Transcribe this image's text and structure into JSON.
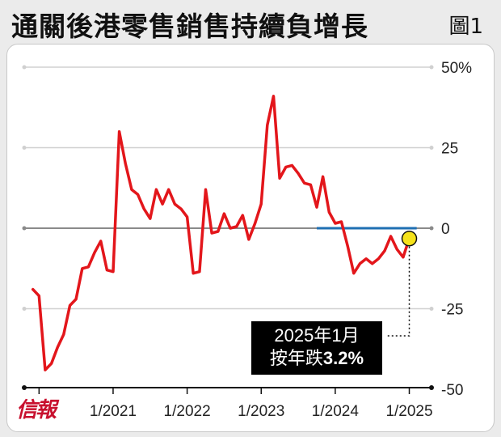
{
  "header": {
    "title": "通關後港零售銷售持續負增長",
    "figure_label": "圖1"
  },
  "logo": {
    "text": "信報"
  },
  "callout": {
    "line1": "2025年1月",
    "line2_prefix": "按年跌",
    "line2_value": "3.2%"
  },
  "colors": {
    "series": "#e3161b",
    "zero_highlight": "#1f6fb2",
    "marker_fill": "#f5e21a",
    "grid": "#d0d0d0"
  },
  "chart_data": {
    "type": "line",
    "title": "通關後港零售銷售持續負增長",
    "xlabel": "",
    "ylabel": "",
    "ylim": [
      -50,
      50
    ],
    "yticks": [
      {
        "value": 50,
        "label": "50%"
      },
      {
        "value": 25,
        "label": "25"
      },
      {
        "value": 0,
        "label": "0"
      },
      {
        "value": -25,
        "label": "-25"
      },
      {
        "value": -50,
        "label": "-50"
      }
    ],
    "xticks": [
      {
        "value": 2021.0,
        "label": "1/2021"
      },
      {
        "value": 2022.0,
        "label": "1/2022"
      },
      {
        "value": 2023.0,
        "label": "1/2023"
      },
      {
        "value": 2024.0,
        "label": "1/2024"
      },
      {
        "value": 2025.0,
        "label": "1/2025"
      }
    ],
    "xlim": [
      2019.8,
      2025.3
    ],
    "grid": true,
    "highlight_line": {
      "y": 0,
      "x_start": 2023.75,
      "x_end": 2025.1
    },
    "highlight_point": {
      "x": 2025.0,
      "y": -3.2
    },
    "series": [
      {
        "x": [
          2019.917,
          2020.0,
          2020.083,
          2020.167,
          2020.25,
          2020.333,
          2020.417,
          2020.5,
          2020.583,
          2020.667,
          2020.75,
          2020.833,
          2020.917,
          2021.0,
          2021.083,
          2021.167,
          2021.25,
          2021.333,
          2021.417,
          2021.5,
          2021.583,
          2021.667,
          2021.75,
          2021.833,
          2021.917,
          2022.0,
          2022.083,
          2022.167,
          2022.25,
          2022.333,
          2022.417,
          2022.5,
          2022.583,
          2022.667,
          2022.75,
          2022.833,
          2022.917,
          2023.0,
          2023.083,
          2023.167,
          2023.25,
          2023.333,
          2023.417,
          2023.5,
          2023.583,
          2023.667,
          2023.75,
          2023.833,
          2023.917,
          2024.0,
          2024.083,
          2024.167,
          2024.25,
          2024.333,
          2024.417,
          2024.5,
          2024.583,
          2024.667,
          2024.75,
          2024.833,
          2024.917,
          2025.0
        ],
        "values": [
          -19,
          -21,
          -44,
          -42,
          -37,
          -33,
          -24,
          -22,
          -12.5,
          -12,
          -7.5,
          -4,
          -13,
          -13.5,
          30,
          20,
          12,
          10.5,
          6,
          3,
          12,
          7.5,
          12,
          7.5,
          6,
          3.5,
          -14,
          -13.5,
          12,
          -1.5,
          -1,
          4.5,
          0,
          0.5,
          4,
          -3.5,
          1.5,
          7.5,
          32,
          41,
          15.5,
          19,
          19.5,
          17,
          14,
          13.5,
          6.5,
          16,
          5,
          1.5,
          2,
          -5.5,
          -14,
          -11,
          -9.5,
          -11,
          -9.5,
          -7,
          -2.5,
          -6.5,
          -9,
          -3.2
        ]
      }
    ]
  }
}
